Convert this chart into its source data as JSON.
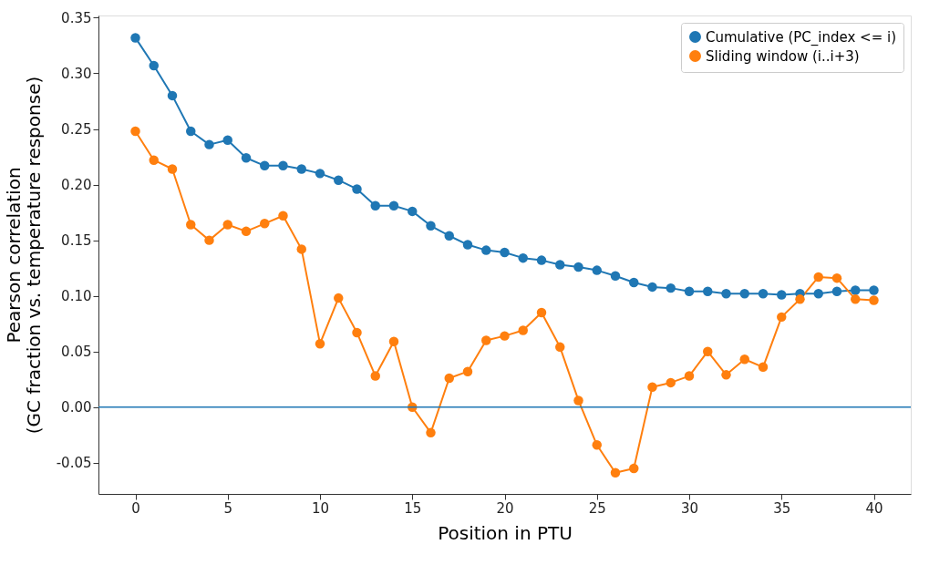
{
  "chart_data": {
    "type": "line",
    "xlabel": "Position in PTU",
    "ylabel": "Pearson correlation\n(GC fraction vs. temperature response)",
    "x": [
      0,
      1,
      2,
      3,
      4,
      5,
      6,
      7,
      8,
      9,
      10,
      11,
      12,
      13,
      14,
      15,
      16,
      17,
      18,
      19,
      20,
      21,
      22,
      23,
      24,
      25,
      26,
      27,
      28,
      29,
      30,
      31,
      32,
      33,
      34,
      35,
      36,
      37,
      38,
      39,
      40
    ],
    "series": [
      {
        "name": "Cumulative (PC_index <= i)",
        "color": "#1f77b4",
        "values": [
          0.332,
          0.307,
          0.28,
          0.248,
          0.236,
          0.24,
          0.224,
          0.217,
          0.217,
          0.214,
          0.21,
          0.204,
          0.196,
          0.181,
          0.181,
          0.176,
          0.163,
          0.154,
          0.146,
          0.141,
          0.139,
          0.134,
          0.132,
          0.128,
          0.126,
          0.123,
          0.118,
          0.112,
          0.108,
          0.107,
          0.104,
          0.104,
          0.102,
          0.102,
          0.102,
          0.101,
          0.102,
          0.102,
          0.104,
          0.105,
          0.105
        ]
      },
      {
        "name": "Sliding window (i..i+3)",
        "color": "#ff7f0e",
        "values": [
          0.248,
          0.222,
          0.214,
          0.164,
          0.15,
          0.164,
          0.158,
          0.165,
          0.172,
          0.142,
          0.057,
          0.098,
          0.067,
          0.028,
          0.059,
          0.0,
          -0.023,
          0.026,
          0.032,
          0.06,
          0.064,
          0.069,
          0.085,
          0.054,
          0.006,
          -0.034,
          -0.059,
          -0.055,
          0.018,
          0.022,
          0.028,
          0.05,
          0.029,
          0.043,
          0.036,
          0.081,
          0.097,
          0.117,
          0.116,
          0.097,
          0.096
        ]
      }
    ],
    "xlim": [
      -2,
      42
    ],
    "xticks": [
      0,
      5,
      10,
      15,
      20,
      25,
      30,
      35,
      40
    ],
    "ylim": [
      -0.078,
      0.352
    ],
    "yticks": [
      {
        "value": -0.05,
        "label": "-0.05"
      },
      {
        "value": 0,
        "label": "0.00"
      },
      0.05,
      {
        "value": 0.1,
        "label": "0.10"
      },
      0.15,
      {
        "value": 0.2,
        "label": "0.20"
      },
      0.25,
      {
        "value": 0.3,
        "label": "0.30"
      },
      0.35
    ],
    "ref_lines": [
      {
        "axis": "y",
        "value": 0,
        "color": "#1f77b4",
        "line_style": "solid"
      }
    ],
    "legend": "top right",
    "marker": "circle",
    "line_style": "solid",
    "grid": false
  }
}
